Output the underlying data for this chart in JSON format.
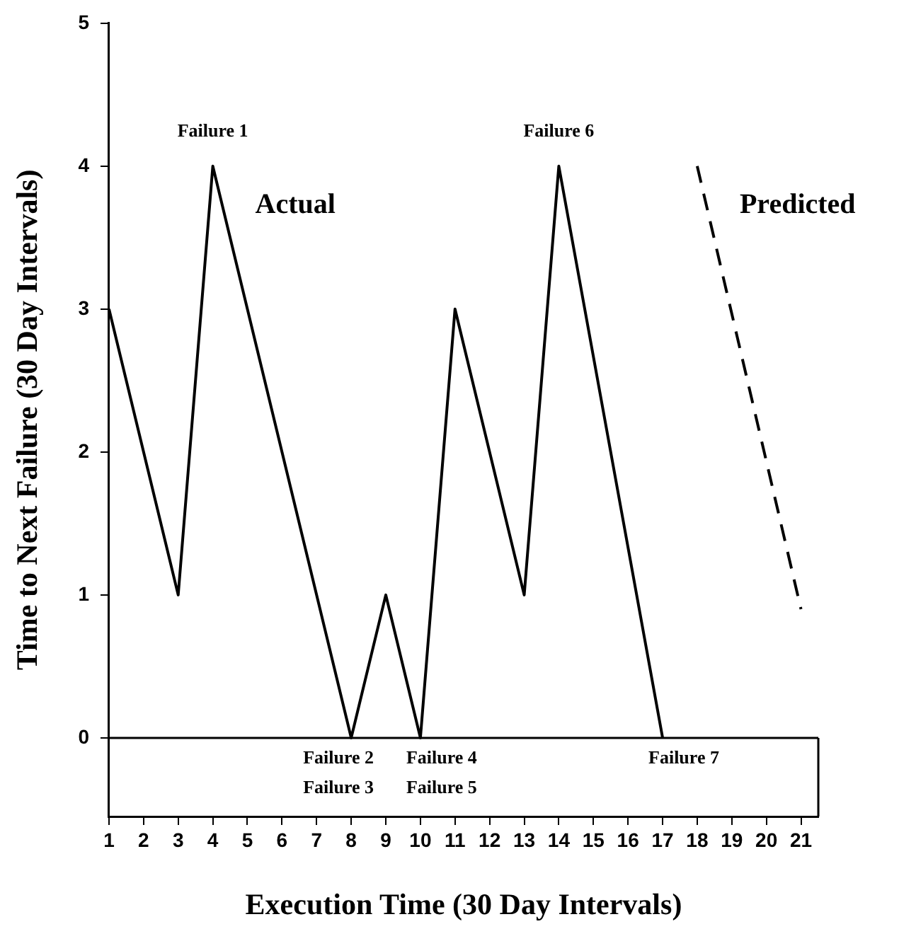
{
  "chart_data": {
    "type": "line",
    "xlabel": "Execution Time (30 Day Intervals)",
    "ylabel": "Time to Next Failure (30 Day Intervals)",
    "xlim": [
      1,
      21.5
    ],
    "xticks": [
      1,
      2,
      3,
      4,
      5,
      6,
      7,
      8,
      9,
      10,
      11,
      12,
      13,
      14,
      15,
      16,
      17,
      18,
      19,
      20,
      21
    ],
    "ylim": [
      -0.55,
      5
    ],
    "yticks": [
      0,
      1,
      2,
      3,
      4,
      5
    ],
    "grid": false,
    "legend": false,
    "marker": "none",
    "series": [
      {
        "name": "Actual",
        "color": "#000000",
        "x": [
          1,
          3,
          4,
          8,
          9,
          10,
          11,
          13,
          14,
          17
        ],
        "values": [
          3,
          1,
          4,
          0,
          1,
          0,
          3,
          1,
          4,
          0
        ],
        "line_style": "solid"
      },
      {
        "name": "Predicted",
        "color": "#000000",
        "x": [
          18,
          21
        ],
        "values": [
          4,
          0.9
        ],
        "line_style": "dashed"
      }
    ],
    "ref_lines": [
      {
        "axis": "y",
        "value": 0
      }
    ],
    "annotations": [
      {
        "text": "Failure 1",
        "x": 4,
        "y": 4
      },
      {
        "text": "Failure 2",
        "x": 8,
        "y": 0
      },
      {
        "text": "Failure 3",
        "x": 8,
        "y": 0
      },
      {
        "text": "Failure 4",
        "x": 10,
        "y": 0
      },
      {
        "text": "Failure 5",
        "x": 10,
        "y": 0
      },
      {
        "text": "Failure 6",
        "x": 14,
        "y": 4
      },
      {
        "text": "Failure 7",
        "x": 17,
        "y": 0
      }
    ]
  }
}
